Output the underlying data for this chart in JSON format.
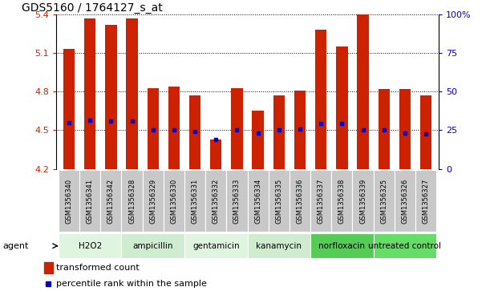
{
  "title": "GDS5160 / 1764127_s_at",
  "samples": [
    "GSM1356340",
    "GSM1356341",
    "GSM1356342",
    "GSM1356328",
    "GSM1356329",
    "GSM1356330",
    "GSM1356331",
    "GSM1356332",
    "GSM1356333",
    "GSM1356334",
    "GSM1356335",
    "GSM1356336",
    "GSM1356337",
    "GSM1356338",
    "GSM1356339",
    "GSM1356325",
    "GSM1356326",
    "GSM1356327"
  ],
  "transformed_count": [
    5.13,
    5.37,
    5.32,
    5.37,
    4.83,
    4.84,
    4.77,
    4.43,
    4.83,
    4.65,
    4.77,
    4.81,
    5.28,
    5.15,
    5.4,
    4.82,
    4.82,
    4.77
  ],
  "percentile_rank_y": [
    4.56,
    4.58,
    4.57,
    4.57,
    4.5,
    4.5,
    4.49,
    4.43,
    4.5,
    4.48,
    4.5,
    4.51,
    4.55,
    4.55,
    4.5,
    4.5,
    4.48,
    4.47
  ],
  "groups": [
    {
      "label": "H2O2",
      "start": 0,
      "end": 3,
      "color": "#e0f5e0"
    },
    {
      "label": "ampicillin",
      "start": 3,
      "end": 6,
      "color": "#d0ecd0"
    },
    {
      "label": "gentamicin",
      "start": 6,
      "end": 9,
      "color": "#e0f5e0"
    },
    {
      "label": "kanamycin",
      "start": 9,
      "end": 12,
      "color": "#d0ecd0"
    },
    {
      "label": "norfloxacin",
      "start": 12,
      "end": 15,
      "color": "#55cc55"
    },
    {
      "label": "untreated control",
      "start": 15,
      "end": 18,
      "color": "#66dd66"
    }
  ],
  "ylim": [
    4.2,
    5.4
  ],
  "yticks": [
    4.2,
    4.5,
    4.8,
    5.1,
    5.4
  ],
  "ytick_labels": [
    "4.2",
    "4.5",
    "4.8",
    "5.1",
    "5.4"
  ],
  "right_yticks_pct": [
    0,
    25,
    50,
    75,
    100
  ],
  "right_ytick_labels": [
    "0",
    "25",
    "50",
    "75",
    "100%"
  ],
  "bar_color": "#cc2200",
  "dot_color": "#0000cc",
  "bar_width": 0.55,
  "tick_color_left": "#cc2200",
  "tick_color_right": "#0000cc",
  "legend_bar_label": "transformed count",
  "legend_dot_label": "percentile rank within the sample",
  "agent_label": "agent"
}
